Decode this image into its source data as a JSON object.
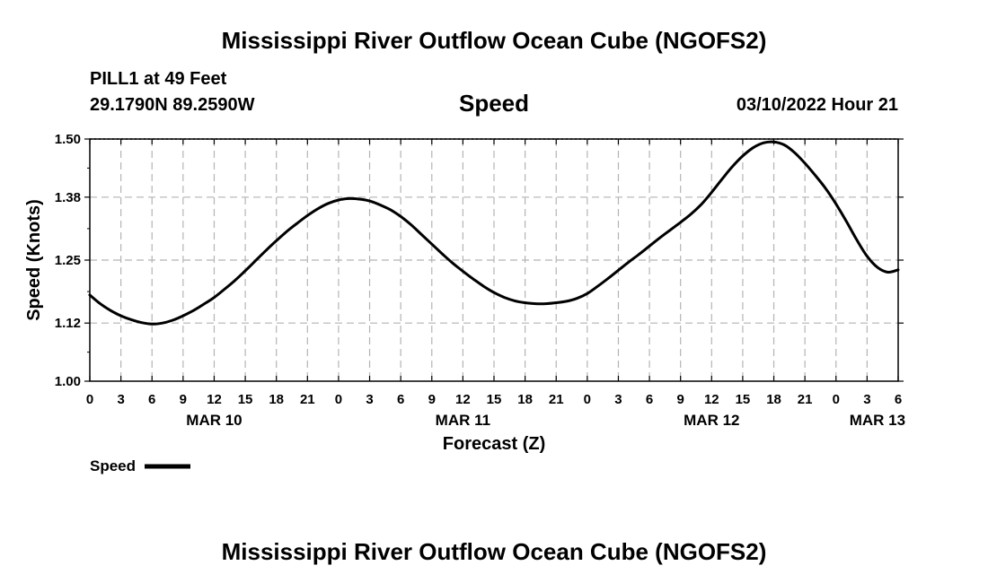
{
  "header": {
    "title": "Mississippi River Outflow Ocean Cube (NGOFS2)",
    "station": "PILL1 at 49 Feet",
    "coords": "29.1790N  89.2590W",
    "variable": "Speed",
    "datetime": "03/10/2022 Hour 21"
  },
  "footer": {
    "title": "Mississippi River Outflow Ocean Cube (NGOFS2)"
  },
  "chart_data": {
    "type": "line",
    "title": "Speed",
    "xlabel": "Forecast (Z)",
    "ylabel": "Speed (Knots)",
    "xlim": [
      0,
      78
    ],
    "ylim": [
      1.0,
      1.5
    ],
    "yticks": [
      "1.00",
      "1.12",
      "1.25",
      "1.38",
      "1.50"
    ],
    "xtick_labels": [
      "0",
      "3",
      "6",
      "9",
      "12",
      "15",
      "18",
      "21",
      "0",
      "3",
      "6",
      "9",
      "12",
      "15",
      "18",
      "21",
      "0",
      "3",
      "6",
      "9",
      "12",
      "15",
      "18",
      "21",
      "0",
      "3",
      "6"
    ],
    "day_labels": [
      {
        "label": "MAR 10",
        "hour": 12
      },
      {
        "label": "MAR 11",
        "hour": 36
      },
      {
        "label": "MAR 12",
        "hour": 60
      },
      {
        "label": "MAR 13",
        "hour": 76
      }
    ],
    "grid": true,
    "legend": {
      "position": "bottom-left"
    },
    "series": [
      {
        "name": "Speed",
        "color": "#000000",
        "x": [
          0,
          1,
          2,
          3,
          4,
          5,
          6,
          7,
          8,
          9,
          10,
          11,
          12,
          13,
          14,
          15,
          16,
          17,
          18,
          19,
          20,
          21,
          22,
          23,
          24,
          25,
          26,
          27,
          28,
          29,
          30,
          31,
          32,
          33,
          34,
          35,
          36,
          37,
          38,
          39,
          40,
          41,
          42,
          43,
          44,
          45,
          46,
          47,
          48,
          49,
          50,
          51,
          52,
          53,
          54,
          55,
          56,
          57,
          58,
          59,
          60,
          61,
          62,
          63,
          64,
          65,
          66,
          67,
          68,
          69,
          70,
          71,
          72,
          73,
          74,
          75,
          76,
          77,
          78
        ],
        "values": [
          1.178,
          1.16,
          1.146,
          1.135,
          1.127,
          1.121,
          1.118,
          1.12,
          1.126,
          1.135,
          1.146,
          1.159,
          1.173,
          1.19,
          1.208,
          1.228,
          1.249,
          1.27,
          1.29,
          1.309,
          1.326,
          1.342,
          1.356,
          1.367,
          1.374,
          1.377,
          1.376,
          1.372,
          1.364,
          1.354,
          1.34,
          1.323,
          1.303,
          1.283,
          1.263,
          1.244,
          1.227,
          1.211,
          1.196,
          1.183,
          1.173,
          1.166,
          1.162,
          1.16,
          1.16,
          1.162,
          1.165,
          1.171,
          1.181,
          1.196,
          1.212,
          1.229,
          1.246,
          1.262,
          1.279,
          1.296,
          1.312,
          1.328,
          1.345,
          1.365,
          1.39,
          1.417,
          1.443,
          1.465,
          1.482,
          1.492,
          1.494,
          1.488,
          1.472,
          1.45,
          1.425,
          1.398,
          1.366,
          1.33,
          1.292,
          1.258,
          1.235,
          1.225,
          1.23
        ]
      }
    ]
  }
}
